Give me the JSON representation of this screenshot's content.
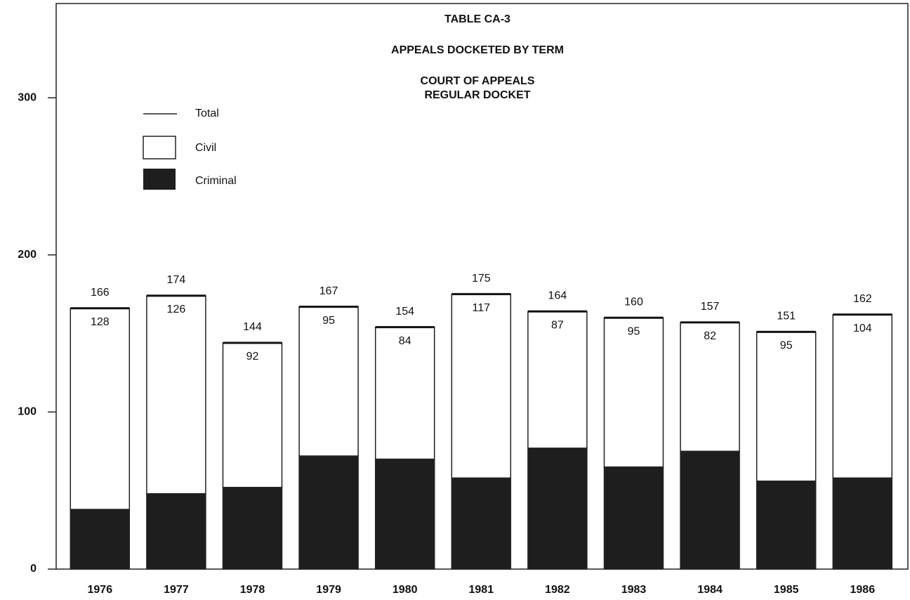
{
  "chart_data": {
    "type": "stacked_bar",
    "title": "TABLE CA-3",
    "subtitle": [
      "APPEALS DOCKETED BY TERM",
      "COURT OF APPEALS",
      "REGULAR DOCKET"
    ],
    "categories": [
      "1976",
      "1977",
      "1978",
      "1979",
      "1980",
      "1981",
      "1982",
      "1983",
      "1984",
      "1985",
      "1986"
    ],
    "series": [
      {
        "name": "Criminal",
        "color": "#1e1e1e",
        "values": [
          38,
          48,
          52,
          72,
          70,
          58,
          77,
          65,
          75,
          56,
          58
        ]
      },
      {
        "name": "Civil",
        "color": "#ffffff",
        "values": [
          128,
          126,
          92,
          95,
          84,
          117,
          87,
          95,
          82,
          95,
          104
        ]
      }
    ],
    "totals": {
      "name": "Total",
      "values": [
        166,
        174,
        144,
        167,
        154,
        175,
        164,
        160,
        157,
        151,
        162
      ]
    },
    "ylim": [
      0,
      360
    ],
    "yticks": [
      0,
      100,
      200,
      300
    ]
  }
}
